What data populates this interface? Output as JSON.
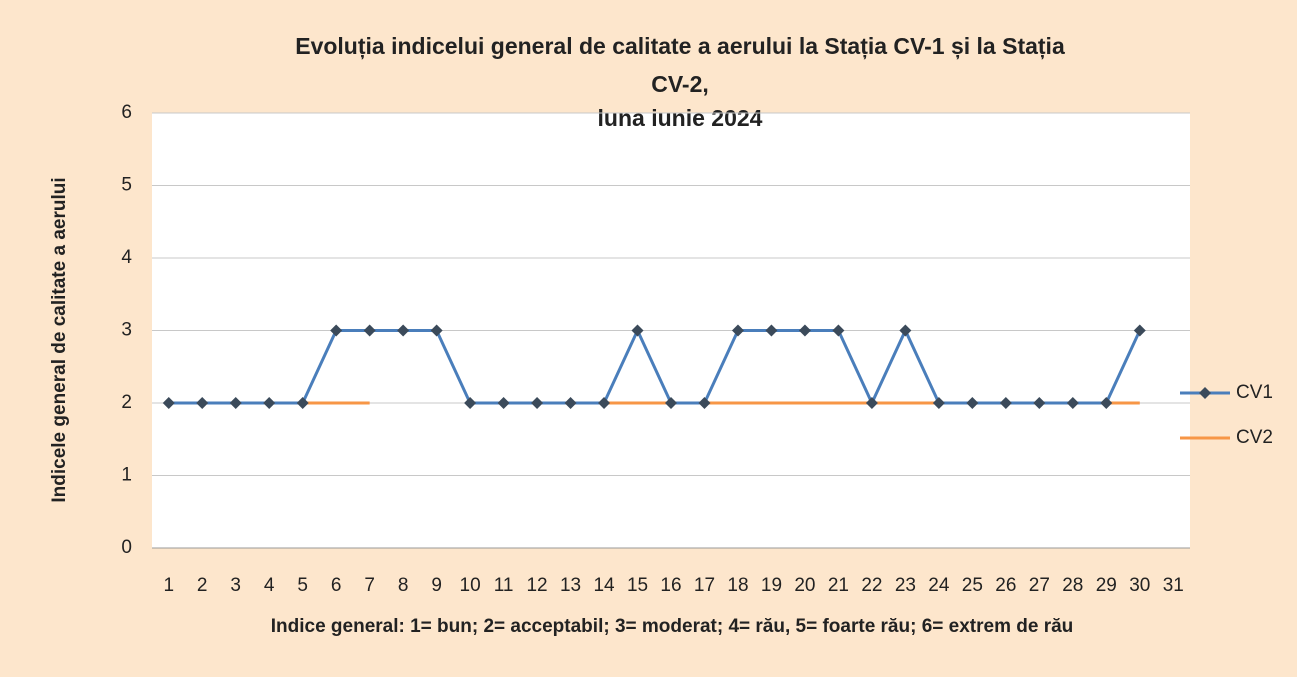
{
  "chart_data": {
    "type": "line",
    "title": [
      "Evoluția indicelui general de calitate a aerului la Stația CV-1  și la Stația",
      "CV-2,",
      "luna iunie 2024"
    ],
    "y_label": "Indicele general  de calitate a aerului",
    "x_label": "Indice general: 1= bun; 2= acceptabil; 3= moderat; 4= rău, 5= foarte rău; 6= extrem de rău",
    "categories": [
      1,
      2,
      3,
      4,
      5,
      6,
      7,
      8,
      9,
      10,
      11,
      12,
      13,
      14,
      15,
      16,
      17,
      18,
      19,
      20,
      21,
      22,
      23,
      24,
      25,
      26,
      27,
      28,
      29,
      30,
      31
    ],
    "series": [
      {
        "name": "CV1",
        "color": "#4a7ebb",
        "marker": "diamond",
        "values": [
          2,
          2,
          2,
          2,
          2,
          3,
          3,
          3,
          3,
          2,
          2,
          2,
          2,
          2,
          3,
          2,
          2,
          3,
          3,
          3,
          3,
          2,
          3,
          2,
          2,
          2,
          2,
          2,
          2,
          3,
          null
        ]
      },
      {
        "name": "CV2",
        "color": "#f79646",
        "values": [
          2,
          2,
          2,
          2,
          2,
          2,
          2,
          null,
          null,
          2,
          2,
          2,
          2,
          2,
          2,
          2,
          2,
          2,
          2,
          2,
          2,
          2,
          2,
          2,
          2,
          2,
          2,
          2,
          2,
          2,
          null
        ]
      }
    ],
    "ylim": [
      0,
      6
    ],
    "yticks": [
      0,
      1,
      2,
      3,
      4,
      5,
      6
    ],
    "grid": true,
    "legend": "right"
  }
}
